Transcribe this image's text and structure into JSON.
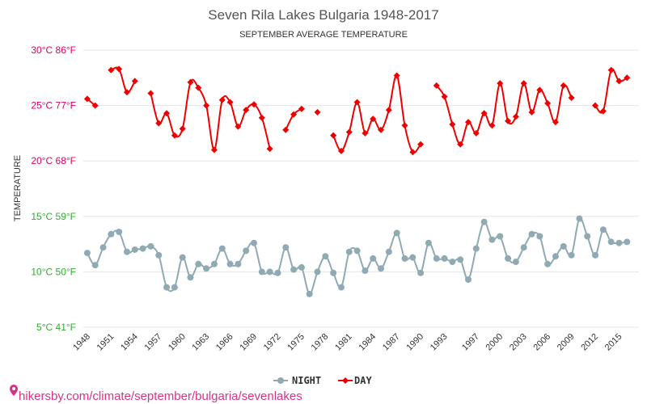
{
  "chart_data": {
    "type": "line",
    "title": "Seven Rila Lakes Bulgaria 1948-2017",
    "subtitle": "SEPTEMBER AVERAGE TEMPERATURE",
    "ylabel": "TEMPERATURE",
    "ylim": [
      5,
      30
    ],
    "yticks": [
      {
        "value": 30,
        "label": "30°C 86°F"
      },
      {
        "value": 25,
        "label": "25°C 77°F"
      },
      {
        "value": 20,
        "label": "20°C 68°F"
      },
      {
        "value": 15,
        "label": "15°C 59°F"
      },
      {
        "value": 10,
        "label": "10°C 50°F"
      },
      {
        "value": 5,
        "label": "5°C 41°F"
      }
    ],
    "xticks": [
      1948,
      1951,
      1954,
      1957,
      1960,
      1963,
      1966,
      1969,
      1972,
      1975,
      1978,
      1981,
      1984,
      1987,
      1990,
      1993,
      1997,
      2000,
      2003,
      2006,
      2009,
      2012,
      2015
    ],
    "xlim": [
      1947.5,
      2017.5
    ],
    "grid": "horizontal",
    "legend_position": "bottom",
    "series": [
      {
        "name": "NIGHT",
        "color": "#90aab4",
        "points": [
          [
            1948,
            11.7
          ],
          [
            1949,
            10.6
          ],
          [
            1950,
            12.2
          ],
          [
            1951,
            13.4
          ],
          [
            1952,
            13.6
          ],
          [
            1953,
            11.8
          ],
          [
            1954,
            12.0
          ],
          [
            1955,
            12.1
          ],
          [
            1956,
            12.3
          ],
          [
            1957,
            11.5
          ],
          [
            1958,
            8.6
          ],
          [
            1959,
            8.6
          ],
          [
            1960,
            11.3
          ],
          [
            1961,
            9.5
          ],
          [
            1962,
            10.7
          ],
          [
            1963,
            10.3
          ],
          [
            1964,
            10.7
          ],
          [
            1965,
            12.1
          ],
          [
            1966,
            10.7
          ],
          [
            1967,
            10.7
          ],
          [
            1968,
            11.9
          ],
          [
            1969,
            12.6
          ],
          [
            1970,
            10.0
          ],
          [
            1971,
            10.0
          ],
          [
            1972,
            9.9
          ],
          [
            1973,
            12.2
          ],
          [
            1974,
            10.2
          ],
          [
            1975,
            10.4
          ],
          [
            1976,
            8.0
          ],
          [
            1977,
            10.0
          ],
          [
            1978,
            11.4
          ],
          [
            1979,
            9.9
          ],
          [
            1980,
            8.6
          ],
          [
            1981,
            11.8
          ],
          [
            1982,
            11.9
          ],
          [
            1983,
            10.1
          ],
          [
            1984,
            11.2
          ],
          [
            1985,
            10.3
          ],
          [
            1986,
            11.8
          ],
          [
            1987,
            13.5
          ],
          [
            1988,
            11.2
          ],
          [
            1989,
            11.3
          ],
          [
            1990,
            9.9
          ],
          [
            1991,
            12.6
          ],
          [
            1992,
            11.2
          ],
          [
            1993,
            11.2
          ],
          [
            1994,
            10.9
          ],
          [
            1995,
            11.1
          ],
          [
            1996,
            9.3
          ],
          [
            1997,
            12.1
          ],
          [
            1998,
            14.5
          ],
          [
            1999,
            12.9
          ],
          [
            2000,
            13.2
          ],
          [
            2001,
            11.2
          ],
          [
            2002,
            10.9
          ],
          [
            2003,
            12.2
          ],
          [
            2004,
            13.4
          ],
          [
            2005,
            13.2
          ],
          [
            2006,
            10.7
          ],
          [
            2007,
            11.4
          ],
          [
            2008,
            12.3
          ],
          [
            2009,
            11.5
          ],
          [
            2010,
            14.8
          ],
          [
            2011,
            13.2
          ],
          [
            2012,
            11.5
          ],
          [
            2013,
            13.8
          ],
          [
            2014,
            12.7
          ],
          [
            2015,
            12.6
          ],
          [
            2016,
            12.7
          ]
        ]
      },
      {
        "name": "DAY",
        "color": "#ee0000",
        "points": [
          [
            1948,
            25.6
          ],
          [
            1949,
            25.0
          ],
          [
            1950,
            null
          ],
          [
            1951,
            28.2
          ],
          [
            1952,
            28.3
          ],
          [
            1953,
            26.2
          ],
          [
            1954,
            27.2
          ],
          [
            1955,
            null
          ],
          [
            1956,
            26.1
          ],
          [
            1957,
            23.4
          ],
          [
            1958,
            24.3
          ],
          [
            1959,
            22.3
          ],
          [
            1960,
            22.9
          ],
          [
            1961,
            27.1
          ],
          [
            1962,
            26.6
          ],
          [
            1963,
            25.0
          ],
          [
            1964,
            21.0
          ],
          [
            1965,
            25.5
          ],
          [
            1966,
            25.3
          ],
          [
            1967,
            23.1
          ],
          [
            1968,
            24.6
          ],
          [
            1969,
            25.1
          ],
          [
            1970,
            23.9
          ],
          [
            1971,
            21.1
          ],
          [
            1972,
            null
          ],
          [
            1973,
            22.8
          ],
          [
            1974,
            24.2
          ],
          [
            1975,
            24.7
          ],
          [
            1976,
            null
          ],
          [
            1977,
            24.4
          ],
          [
            1978,
            null
          ],
          [
            1979,
            22.3
          ],
          [
            1980,
            20.9
          ],
          [
            1981,
            22.6
          ],
          [
            1982,
            25.3
          ],
          [
            1983,
            22.5
          ],
          [
            1984,
            23.8
          ],
          [
            1985,
            22.8
          ],
          [
            1986,
            24.6
          ],
          [
            1987,
            27.7
          ],
          [
            1988,
            23.2
          ],
          [
            1989,
            20.8
          ],
          [
            1990,
            21.5
          ],
          [
            1991,
            null
          ],
          [
            1992,
            26.8
          ],
          [
            1993,
            25.8
          ],
          [
            1994,
            23.3
          ],
          [
            1995,
            21.5
          ],
          [
            1996,
            23.5
          ],
          [
            1997,
            22.5
          ],
          [
            1998,
            24.3
          ],
          [
            1999,
            23.2
          ],
          [
            2000,
            27.0
          ],
          [
            2001,
            23.6
          ],
          [
            2002,
            24.0
          ],
          [
            2003,
            27.0
          ],
          [
            2004,
            24.4
          ],
          [
            2005,
            26.4
          ],
          [
            2006,
            25.2
          ],
          [
            2007,
            23.5
          ],
          [
            2008,
            26.8
          ],
          [
            2009,
            25.7
          ],
          [
            2010,
            null
          ],
          [
            2011,
            null
          ],
          [
            2012,
            25.0
          ],
          [
            2013,
            24.5
          ],
          [
            2014,
            28.2
          ],
          [
            2015,
            27.2
          ],
          [
            2016,
            27.5
          ]
        ]
      }
    ]
  },
  "footer": {
    "source_text": "hikersby.com/climate/september/bulgaria/sevenlakes",
    "pin_icon": "location-pin-icon"
  }
}
